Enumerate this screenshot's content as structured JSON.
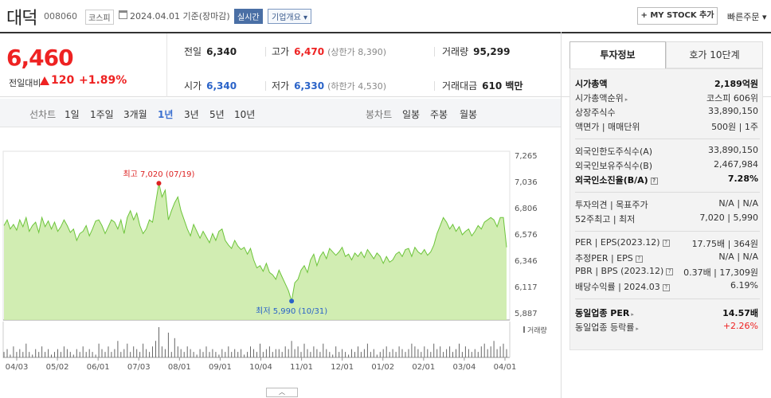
{
  "header": {
    "stock_name": "대덕",
    "stock_code": "008060",
    "market": "코스피",
    "date_text": "2024.04.01 기준(장마감)",
    "realtime_label": "실시간",
    "company_overview_label": "기업개요 ▾",
    "my_stock_label": "+ MY STOCK 추가",
    "quick_order_label": "빠른주문 ▾"
  },
  "price": {
    "current": "6,460",
    "change_label": "전일대비",
    "change_amount": "120",
    "change_rate": "+1.89%",
    "prev_close_label": "전일",
    "prev_close": "6,340",
    "high_label": "고가",
    "high": "6,470",
    "upper_limit": "(상한가 8,390)",
    "volume_label": "거래량",
    "volume": "95,299",
    "open_label": "시가",
    "open": "6,340",
    "low_label": "저가",
    "low": "6,330",
    "lower_limit": "(하한가 4,530)",
    "trade_value_label": "거래대금",
    "trade_value": "610 백만"
  },
  "period_tabs": {
    "line_chart_label": "선차트",
    "line_tabs": [
      "1일",
      "1주일",
      "3개월",
      "1년",
      "3년",
      "5년",
      "10년"
    ],
    "active_tab": "1년",
    "candle_chart_label": "봉차트",
    "candle_tabs": [
      "일봉",
      "주봉",
      "월봉"
    ]
  },
  "chart_data": {
    "type": "area",
    "title": "",
    "x_tick_labels": [
      "04/03",
      "05/02",
      "06/01",
      "07/03",
      "08/01",
      "09/01",
      "10/04",
      "11/01",
      "12/01",
      "01/02",
      "02/01",
      "03/04",
      "04/01"
    ],
    "y_tick_labels": [
      "7,265",
      "7,036",
      "6,806",
      "6,576",
      "6,346",
      "6,117",
      "5,887"
    ],
    "ylim": [
      5887,
      7265
    ],
    "series": [
      {
        "values": [
          6650,
          6700,
          6620,
          6660,
          6610,
          6700,
          6640,
          6720,
          6600,
          6650,
          6680,
          6590,
          6720,
          6640,
          6690,
          6620,
          6680,
          6600,
          6640,
          6700,
          6650,
          6590,
          6620,
          6520,
          6580,
          6600,
          6650,
          6560,
          6620,
          6690,
          6700,
          6650,
          6580,
          6640,
          6700,
          6680,
          6620,
          6700,
          6580,
          6720,
          6780,
          6700,
          6760,
          6650,
          6580,
          6620,
          6700,
          6680,
          6850,
          7020,
          6900,
          6960,
          6700,
          6780,
          6850,
          6900,
          6780,
          6700,
          6620,
          6560,
          6660,
          6600,
          6540,
          6600,
          6550,
          6500,
          6580,
          6520,
          6600,
          6620,
          6520,
          6480,
          6450,
          6520,
          6470,
          6440,
          6460,
          6400,
          6450,
          6350,
          6280,
          6300,
          6250,
          6320,
          6240,
          6220,
          6180,
          6260,
          6200,
          6140,
          6080,
          5990,
          6150,
          6180,
          6260,
          6300,
          6240,
          6350,
          6400,
          6300,
          6380,
          6420,
          6360,
          6450,
          6420,
          6390,
          6420,
          6460,
          6380,
          6400,
          6350,
          6410,
          6380,
          6420,
          6370,
          6440,
          6400,
          6360,
          6410,
          6380,
          6320,
          6380,
          6330,
          6350,
          6400,
          6420,
          6380,
          6440,
          6450,
          6380,
          6460,
          6420,
          6400,
          6440,
          6390,
          6420,
          6480,
          6580,
          6650,
          6720,
          6680,
          6620,
          6660,
          6600,
          6640,
          6570,
          6600,
          6620,
          6560,
          6600,
          6650,
          6620,
          6680,
          6700,
          6720,
          6700,
          6640,
          6720,
          6720,
          6460
        ]
      }
    ],
    "annotations": {
      "high_label": "최고 7,020 (07/19)",
      "low_label": "최저 5,990 (10/31)"
    },
    "volume_label": "거래량",
    "volume_values": [
      2,
      3,
      1,
      4,
      2,
      3,
      2,
      5,
      2,
      1,
      3,
      2,
      4,
      2,
      3,
      1,
      2,
      3,
      2,
      4,
      3,
      2,
      1,
      3,
      2,
      4,
      2,
      3,
      2,
      1,
      5,
      3,
      2,
      4,
      2,
      3,
      6,
      2,
      3,
      5,
      2,
      4,
      3,
      2,
      5,
      3,
      2,
      4,
      6,
      11,
      4,
      3,
      9,
      2,
      7,
      4,
      3,
      2,
      4,
      3,
      2,
      1,
      3,
      2,
      4,
      2,
      3,
      2,
      1,
      3,
      2,
      4,
      2,
      3,
      2,
      3,
      1,
      2,
      4,
      3,
      2,
      5,
      2,
      3,
      4,
      2,
      3,
      3,
      2,
      4,
      3,
      6,
      3,
      4,
      2,
      5,
      3,
      2,
      4,
      3,
      2,
      5,
      3,
      2,
      1,
      4,
      2,
      3,
      2,
      1,
      3,
      2,
      4,
      2,
      3,
      5,
      2,
      3,
      1,
      2,
      3,
      4,
      2,
      3,
      2,
      4,
      3,
      2,
      3,
      5,
      4,
      3,
      2,
      4,
      3,
      2,
      5,
      3,
      4,
      2,
      3,
      4,
      2,
      3,
      5,
      2,
      4,
      3,
      2,
      3,
      2,
      4,
      5,
      3,
      4,
      6,
      3,
      4,
      5,
      3
    ],
    "grid": false,
    "fill_color": "#c9eaa4",
    "line_color": "#6cc43a"
  },
  "info_panel": {
    "tab_invest_info": "투자정보",
    "tab_quote_10": "호가 10단계",
    "rows": {
      "market_cap_label": "시가총액",
      "market_cap": "2,189억원",
      "market_cap_rank_label": "시가총액순위",
      "market_cap_rank": "코스피 606위",
      "listed_shares_label": "상장주식수",
      "listed_shares": "33,890,150",
      "par_value_label": "액면가 | 매매단위",
      "par_value": "500원 | 1주",
      "foreign_limit_label": "외국인한도주식수(A)",
      "foreign_limit": "33,890,150",
      "foreign_holding_label": "외국인보유주식수(B)",
      "foreign_holding": "2,467,984",
      "foreign_ratio_label": "외국인소진율(B/A)",
      "foreign_ratio": "7.28%",
      "opinion_label": "투자의견 | 목표주가",
      "opinion": "N/A | N/A",
      "week52_label": "52주최고 | 최저",
      "week52": "7,020 | 5,990",
      "per_eps_label": "PER | EPS(2023.12)",
      "per_eps": "17.75배 | 364원",
      "est_per_label": "추정PER | EPS",
      "est_per": "N/A | N/A",
      "pbr_bps_label": "PBR | BPS (2023.12)",
      "pbr_bps": "0.37배 | 17,309원",
      "dividend_label": "배당수익률 | 2024.03",
      "dividend": "6.19%",
      "sector_per_label": "동일업종 PER",
      "sector_per": "14.57배",
      "sector_change_label": "동일업종 등락률",
      "sector_change": "+2.26%"
    }
  }
}
